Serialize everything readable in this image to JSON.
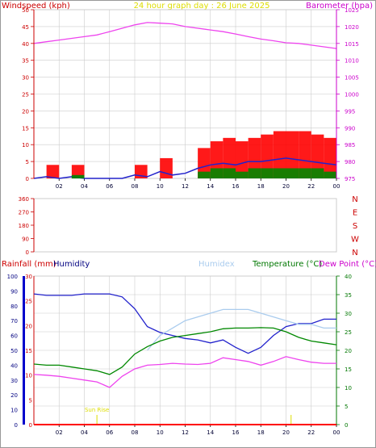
{
  "title": "24 hour graph day : 26 June 2025",
  "colors": {
    "frame": "#0000cc",
    "axis_red": "#cc0000",
    "axis_magenta": "#cc00cc",
    "axis_green": "#007700",
    "grid": "#cccccc",
    "title": "#dddd00",
    "sun": "#dddd00",
    "humidex": "#aaccee"
  },
  "chart_data": [
    {
      "type": "line",
      "x_ticks": [
        "02",
        "04",
        "06",
        "08",
        "10",
        "12",
        "14",
        "16",
        "18",
        "20",
        "22",
        "00"
      ],
      "y_left_label": "Windspeed (kph)",
      "y_left_ticks": [
        "0",
        "5",
        "10",
        "15",
        "20",
        "25",
        "30",
        "35",
        "40",
        "45",
        "50"
      ],
      "y_left_lim": [
        0,
        50
      ],
      "y_right_label": "Barometer (hpa)",
      "y_right_ticks": [
        "975",
        "980",
        "985",
        "990",
        "995",
        "1000",
        "1005",
        "1010",
        "1015",
        "1020",
        "1025"
      ],
      "y_right_lim": [
        975,
        1025
      ],
      "series": [
        {
          "name": "Barometer",
          "color": "#ee44ee",
          "axis": "right",
          "x": [
            0,
            1,
            2,
            3,
            4,
            5,
            6,
            7,
            8,
            9,
            10,
            11,
            12,
            13,
            14,
            15,
            16,
            17,
            18,
            19,
            20,
            21,
            22,
            23,
            24
          ],
          "values": [
            1015.0,
            1015.5,
            1016.0,
            1016.5,
            1017.0,
            1017.5,
            1018.5,
            1019.5,
            1020.5,
            1021.2,
            1021.0,
            1020.8,
            1020.0,
            1019.5,
            1019.0,
            1018.5,
            1017.8,
            1017.0,
            1016.3,
            1015.8,
            1015.2,
            1015.0,
            1014.5,
            1014.0,
            1013.5
          ]
        },
        {
          "name": "Wind gust",
          "color": "#ff0000",
          "axis": "left",
          "x": [
            0,
            1,
            2,
            3,
            4,
            5,
            6,
            7,
            8,
            9,
            10,
            11,
            12,
            13,
            14,
            15,
            16,
            17,
            18,
            19,
            20,
            21,
            22,
            23,
            24
          ],
          "values": [
            0,
            4,
            0,
            4,
            0,
            0,
            0,
            0,
            4,
            0,
            6,
            0,
            0,
            9,
            11,
            12,
            11,
            12,
            13,
            14,
            14,
            14,
            13,
            12,
            8
          ]
        },
        {
          "name": "Wind average",
          "color": "#2222cc",
          "axis": "left",
          "x": [
            0,
            1,
            2,
            3,
            4,
            5,
            6,
            7,
            8,
            9,
            10,
            11,
            12,
            13,
            14,
            15,
            16,
            17,
            18,
            19,
            20,
            21,
            22,
            23,
            24
          ],
          "values": [
            0,
            0.5,
            0,
            0.5,
            0,
            0,
            0,
            0,
            1,
            0.5,
            2,
            1,
            1.5,
            3,
            4,
            4.5,
            4,
            5,
            5,
            5.5,
            6,
            5.5,
            5,
            4.5,
            4
          ]
        },
        {
          "name": "Wind lull",
          "color": "#008800",
          "axis": "left",
          "x": [
            0,
            1,
            2,
            3,
            4,
            5,
            6,
            7,
            8,
            9,
            10,
            11,
            12,
            13,
            14,
            15,
            16,
            17,
            18,
            19,
            20,
            21,
            22,
            23,
            24
          ],
          "values": [
            0,
            0,
            0,
            1,
            0,
            0,
            0,
            0,
            0,
            0,
            0,
            0,
            0,
            2,
            3,
            3,
            2,
            3,
            3,
            3,
            3,
            3,
            3,
            2,
            3
          ]
        }
      ]
    },
    {
      "type": "scatter",
      "x_ticks": [
        "02",
        "04",
        "06",
        "08",
        "10",
        "12",
        "14",
        "16",
        "18",
        "20",
        "22",
        "00"
      ],
      "y_left_ticks": [
        "0",
        "90",
        "180",
        "270",
        "360"
      ],
      "y_left_lim": [
        0,
        360
      ],
      "y_right_ticks": [
        "N",
        "W",
        "S",
        "E",
        "N"
      ],
      "series": []
    },
    {
      "type": "line",
      "x_ticks": [
        "02",
        "04",
        "06",
        "08",
        "10",
        "12",
        "14",
        "16",
        "18",
        "20",
        "22",
        "00"
      ],
      "labels": {
        "rainfall": "Rainfall (mm)",
        "humidity": "Humidity",
        "humidex": "Humidex",
        "temperature": "Temperature (°C)",
        "dewpoint": "Dew Point (°C)"
      },
      "humidity_ticks": [
        "0",
        "10",
        "20",
        "30",
        "40",
        "50",
        "60",
        "70",
        "80",
        "90",
        "100"
      ],
      "humidity_lim": [
        0,
        100
      ],
      "rain_ticks": [
        "0",
        "5",
        "10",
        "15",
        "20",
        "25",
        "30"
      ],
      "rain_lim": [
        0,
        30
      ],
      "temp_ticks": [
        "0",
        "5",
        "10",
        "15",
        "20",
        "25",
        "30",
        "35",
        "40"
      ],
      "temp_lim": [
        0,
        40
      ],
      "sunrise": {
        "label": "Sun Rise",
        "hour": 5.0
      },
      "sunset": {
        "hour": 20.4
      },
      "series": [
        {
          "name": "Humidity",
          "color": "#2222cc",
          "axis": "humidity",
          "x": [
            0,
            1,
            2,
            3,
            4,
            5,
            6,
            7,
            8,
            9,
            10,
            11,
            12,
            13,
            14,
            15,
            16,
            17,
            18,
            19,
            20,
            21,
            22,
            23,
            24
          ],
          "values": [
            88,
            87,
            87,
            87,
            88,
            88,
            88,
            86,
            78,
            66,
            62,
            60,
            58,
            57,
            55,
            57,
            52,
            48,
            52,
            60,
            66,
            68,
            68,
            71,
            71
          ]
        },
        {
          "name": "Humidex",
          "color": "#aaccee",
          "axis": "temp",
          "x": [
            0,
            1,
            2,
            3,
            4,
            5,
            6,
            7,
            8,
            9,
            10,
            11,
            12,
            13,
            14,
            15,
            16,
            17,
            18,
            19,
            20,
            21,
            22,
            23,
            24
          ],
          "values": [
            null,
            null,
            null,
            null,
            null,
            null,
            null,
            null,
            null,
            20,
            24,
            26,
            28,
            29,
            30,
            31,
            31,
            31,
            30,
            29,
            28,
            27,
            27,
            26,
            26
          ]
        },
        {
          "name": "Temperature",
          "color": "#008800",
          "axis": "temp",
          "x": [
            0,
            1,
            2,
            3,
            4,
            5,
            6,
            7,
            8,
            9,
            10,
            11,
            12,
            13,
            14,
            15,
            16,
            17,
            18,
            19,
            20,
            21,
            22,
            23,
            24
          ],
          "values": [
            16.3,
            16,
            16,
            15.5,
            15,
            14.5,
            13.5,
            15.5,
            19,
            21,
            22.5,
            23.5,
            24,
            24.5,
            25,
            25.8,
            26,
            26,
            26.1,
            26,
            25,
            23.5,
            22.5,
            22,
            21.5
          ]
        },
        {
          "name": "Dew Point",
          "color": "#ee44ee",
          "axis": "temp",
          "x": [
            0,
            1,
            2,
            3,
            4,
            5,
            6,
            7,
            8,
            9,
            10,
            11,
            12,
            13,
            14,
            15,
            16,
            17,
            18,
            19,
            20,
            21,
            22,
            23,
            24
          ],
          "values": [
            13.5,
            13.3,
            13.0,
            12.5,
            12,
            11.5,
            10.0,
            13,
            15,
            16,
            16.2,
            16.5,
            16.3,
            16.2,
            16.5,
            18,
            17.5,
            17,
            16,
            17,
            18.3,
            17.5,
            16.8,
            16.5,
            16.5
          ]
        },
        {
          "name": "Rainfall",
          "color": "#ff0000",
          "axis": "rain",
          "x": [
            0,
            24
          ],
          "values": [
            0,
            0
          ]
        }
      ]
    }
  ]
}
